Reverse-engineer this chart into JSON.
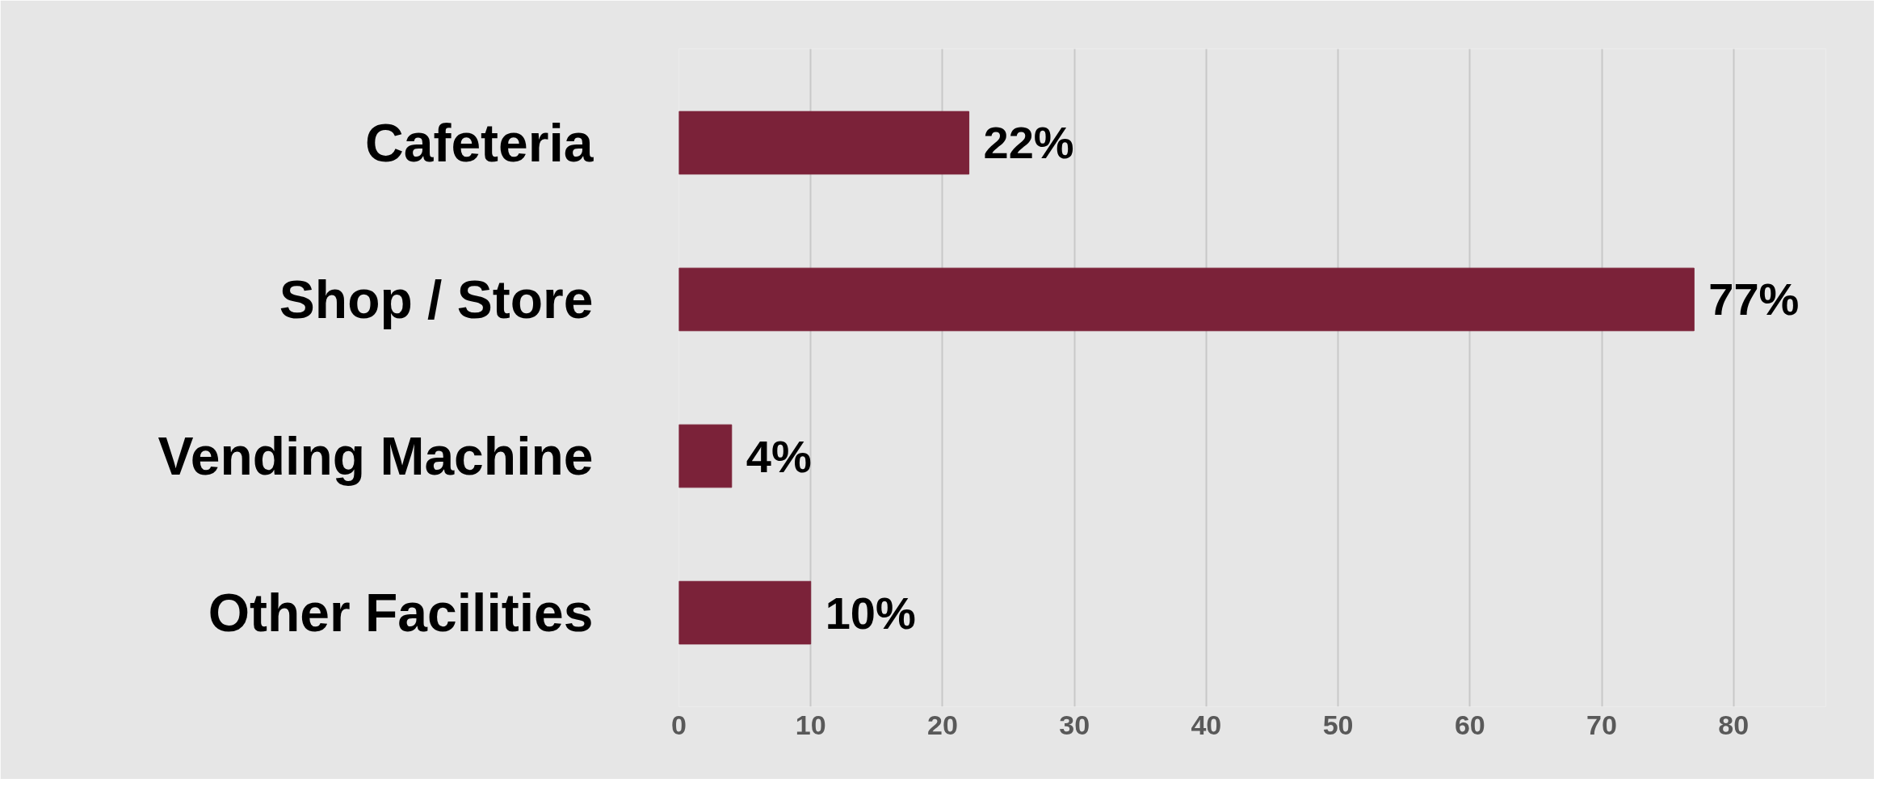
{
  "chart_data": {
    "type": "bar",
    "orientation": "horizontal",
    "categories": [
      "Cafeteria",
      "Shop / Store",
      "Vending Machine",
      "Other Facilities"
    ],
    "values": [
      22,
      77,
      4,
      10
    ],
    "value_labels": [
      "22%",
      "77%",
      "4%",
      "10%"
    ],
    "color": "#7b2239",
    "xlim": [
      0,
      87
    ],
    "xticks": [
      0,
      10,
      20,
      30,
      40,
      50,
      60,
      70,
      80
    ],
    "grid": "x"
  }
}
